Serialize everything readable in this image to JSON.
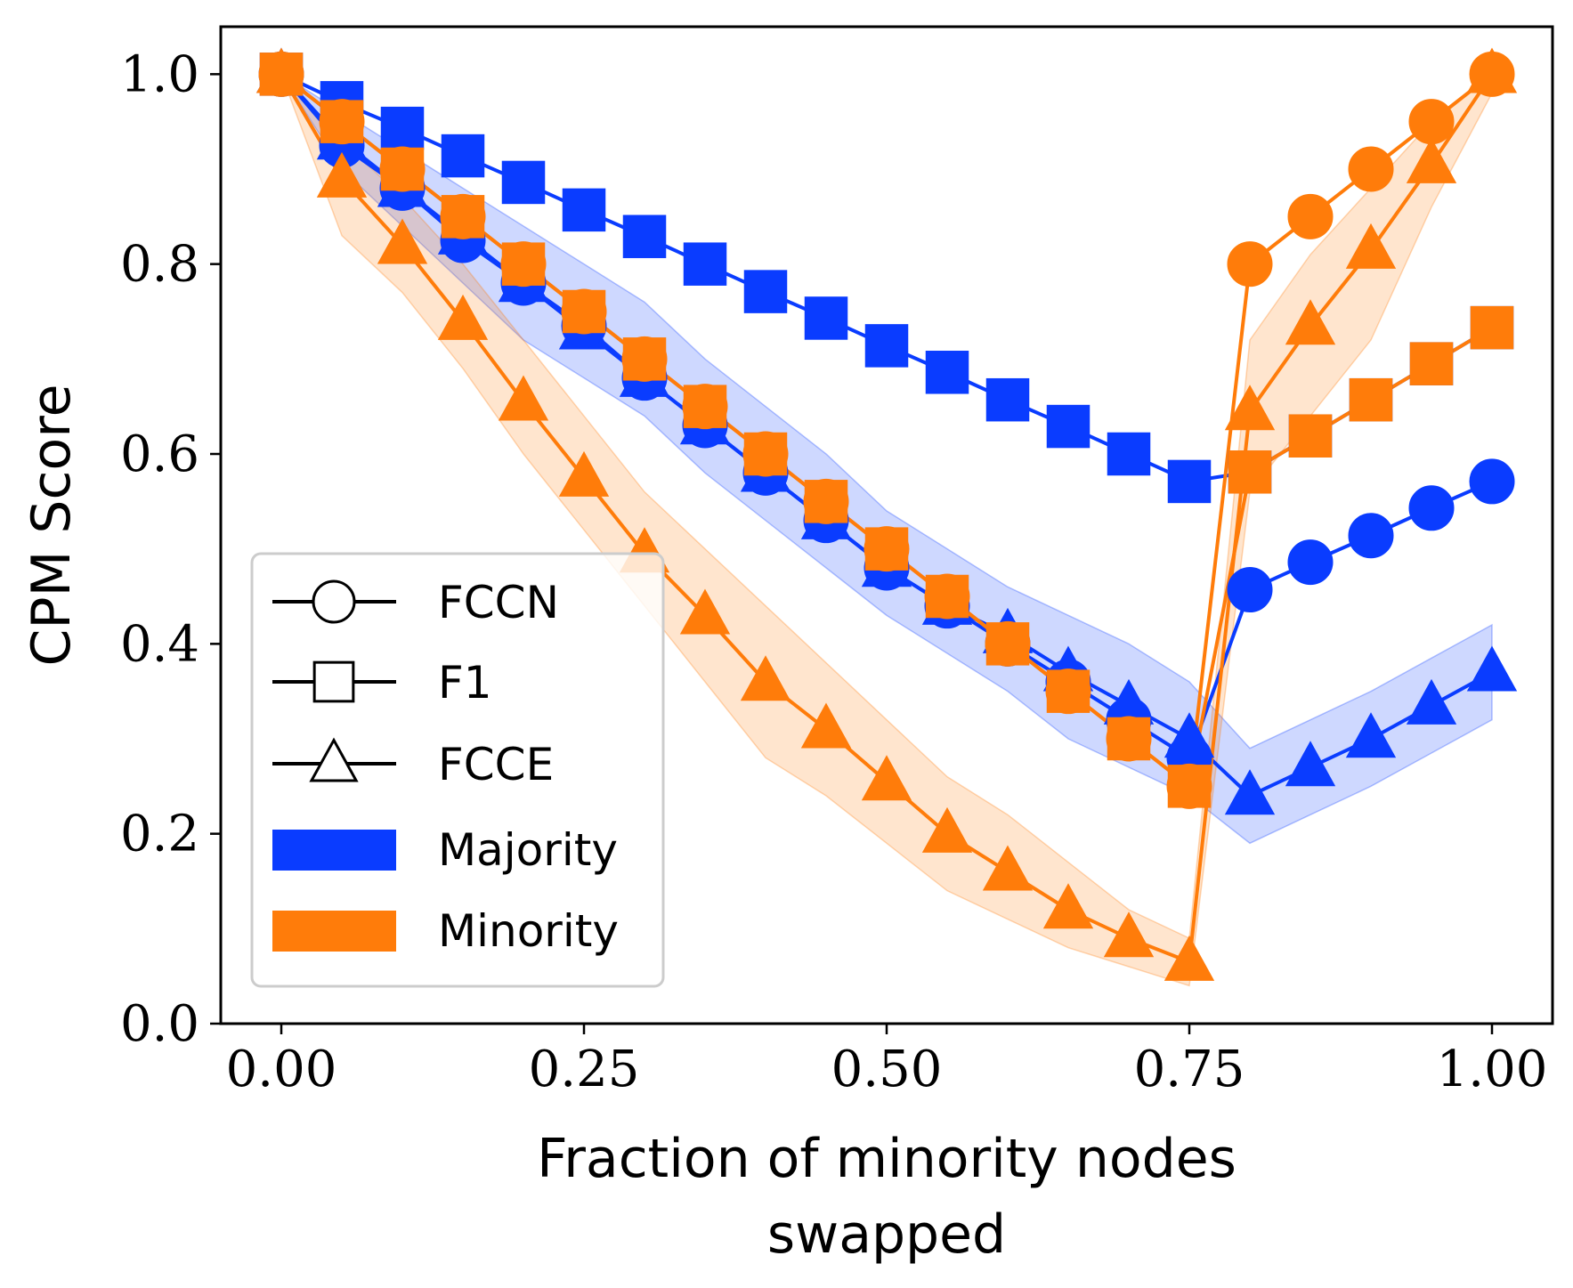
{
  "chart_data": {
    "type": "line",
    "xlabel": "Fraction of minority nodes swapped",
    "xlabel_lines": [
      "Fraction of minority nodes",
      "swapped"
    ],
    "ylabel": "CPM Score",
    "xlim": [
      -0.05,
      1.05
    ],
    "ylim": [
      0.0,
      1.05
    ],
    "xticks": [
      0.0,
      0.25,
      0.5,
      0.75,
      1.0
    ],
    "xtick_labels": [
      "0.00",
      "0.25",
      "0.50",
      "0.75",
      "1.00"
    ],
    "yticks": [
      0.0,
      0.2,
      0.4,
      0.6,
      0.8,
      1.0
    ],
    "ytick_labels": [
      "0.0",
      "0.2",
      "0.4",
      "0.6",
      "0.8",
      "1.0"
    ],
    "grid": false,
    "legend_position": "lower-left",
    "legend": [
      {
        "label": "FCCN",
        "marker": "circle",
        "kind": "marker"
      },
      {
        "label": "F1",
        "marker": "square",
        "kind": "marker"
      },
      {
        "label": "FCCE",
        "marker": "triangle",
        "kind": "marker"
      },
      {
        "label": "Majority",
        "kind": "color",
        "color": "#0a3cff"
      },
      {
        "label": "Minority",
        "kind": "color",
        "color": "#ff7c0a"
      }
    ],
    "x": [
      0.0,
      0.05,
      0.1,
      0.15,
      0.2,
      0.25,
      0.3,
      0.35,
      0.4,
      0.45,
      0.5,
      0.55,
      0.6,
      0.65,
      0.7,
      0.75,
      0.8,
      0.85,
      0.9,
      0.95,
      1.0
    ],
    "series": [
      {
        "metric": "FCCN",
        "group": "Majority",
        "marker": "circle",
        "color": "#0a3cff",
        "values": [
          1.0,
          0.925,
          0.88,
          0.825,
          0.78,
          0.735,
          0.68,
          0.63,
          0.58,
          0.53,
          0.48,
          0.44,
          0.4,
          0.36,
          0.32,
          0.28,
          0.457,
          0.486,
          0.514,
          0.543,
          0.571
        ]
      },
      {
        "metric": "F1",
        "group": "Majority",
        "marker": "square",
        "color": "#0a3cff",
        "values": [
          1.0,
          0.97,
          0.943,
          0.914,
          0.886,
          0.857,
          0.829,
          0.8,
          0.771,
          0.743,
          0.714,
          0.686,
          0.657,
          0.629,
          0.6,
          0.571,
          0.581,
          0.619,
          0.657,
          0.695,
          0.733
        ]
      },
      {
        "metric": "FCCE",
        "group": "Majority",
        "marker": "triangle",
        "color": "#0a3cff",
        "values": [
          1.0,
          0.93,
          0.88,
          0.83,
          0.78,
          0.73,
          0.68,
          0.63,
          0.58,
          0.53,
          0.48,
          0.44,
          0.41,
          0.37,
          0.335,
          0.3,
          0.24,
          0.27,
          0.3,
          0.335,
          0.37
        ],
        "band_lower": [
          1.0,
          0.9,
          0.84,
          0.78,
          0.72,
          0.68,
          0.64,
          0.58,
          0.53,
          0.48,
          0.43,
          0.39,
          0.35,
          0.3,
          0.27,
          0.24,
          0.19,
          0.22,
          0.25,
          0.285,
          0.32
        ],
        "band_upper": [
          1.0,
          0.96,
          0.92,
          0.88,
          0.84,
          0.8,
          0.76,
          0.7,
          0.65,
          0.6,
          0.54,
          0.5,
          0.46,
          0.43,
          0.4,
          0.36,
          0.29,
          0.32,
          0.35,
          0.385,
          0.42
        ]
      },
      {
        "metric": "FCCN",
        "group": "Minority",
        "marker": "circle",
        "color": "#ff7c0a",
        "values": [
          1.0,
          0.95,
          0.9,
          0.85,
          0.8,
          0.75,
          0.7,
          0.65,
          0.6,
          0.55,
          0.5,
          0.45,
          0.4,
          0.35,
          0.3,
          0.25,
          0.8,
          0.85,
          0.9,
          0.95,
          1.0
        ]
      },
      {
        "metric": "F1",
        "group": "Minority",
        "marker": "square",
        "color": "#ff7c0a",
        "values": [
          1.0,
          0.95,
          0.9,
          0.85,
          0.8,
          0.75,
          0.7,
          0.65,
          0.6,
          0.55,
          0.5,
          0.45,
          0.4,
          0.35,
          0.3,
          0.25,
          0.581,
          0.619,
          0.657,
          0.695,
          0.733
        ]
      },
      {
        "metric": "FCCE",
        "group": "Minority",
        "marker": "triangle",
        "color": "#ff7c0a",
        "values": [
          1.0,
          0.89,
          0.82,
          0.74,
          0.655,
          0.575,
          0.495,
          0.43,
          0.36,
          0.31,
          0.255,
          0.2,
          0.16,
          0.12,
          0.09,
          0.065,
          0.645,
          0.735,
          0.815,
          0.905,
          1.0
        ],
        "band_lower": [
          1.0,
          0.83,
          0.77,
          0.69,
          0.6,
          0.52,
          0.44,
          0.36,
          0.28,
          0.24,
          0.19,
          0.14,
          0.11,
          0.08,
          0.06,
          0.04,
          0.56,
          0.64,
          0.72,
          0.86,
          0.98
        ],
        "band_upper": [
          1.0,
          0.93,
          0.87,
          0.8,
          0.72,
          0.64,
          0.56,
          0.5,
          0.44,
          0.38,
          0.32,
          0.26,
          0.22,
          0.17,
          0.12,
          0.09,
          0.72,
          0.81,
          0.88,
          0.95,
          1.0
        ]
      }
    ]
  }
}
